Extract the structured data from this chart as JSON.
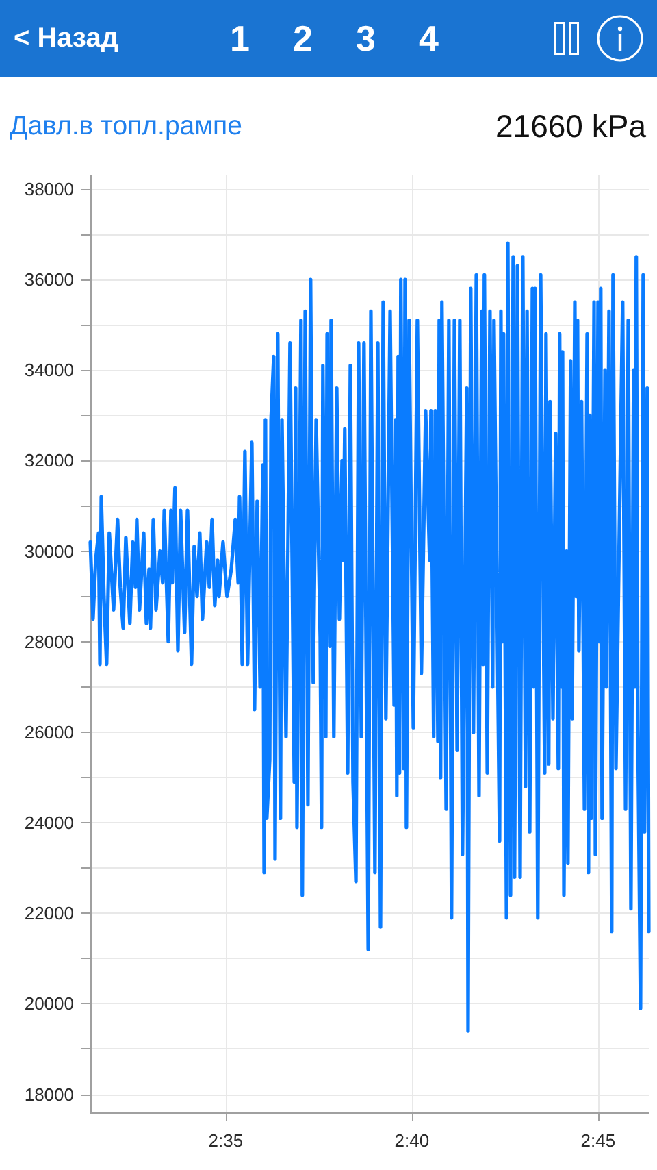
{
  "chart_data": {
    "type": "line",
    "title": "Давл.в топл.рампе",
    "annotations": [
      "< Назад",
      "1",
      "2",
      "3",
      "4",
      "21660 kPa"
    ],
    "color": "#0a7cff",
    "marker": "none",
    "line_style": "solid",
    "grid": true,
    "xlim": [
      2.5227,
      2.7727
    ],
    "xticks": [
      {
        "value": 2.58333,
        "label": "2:35"
      },
      {
        "value": 2.66667,
        "label": "2:40"
      },
      {
        "value": 2.75,
        "label": "2:45"
      }
    ],
    "ylim": [
      17600,
      38300
    ],
    "yticks": [
      18000,
      {
        "value": 19000,
        "label": null
      },
      20000,
      {
        "value": 21000,
        "label": null
      },
      22000,
      {
        "value": 23000,
        "label": null
      },
      24000,
      {
        "value": 25000,
        "label": null
      },
      26000,
      {
        "value": 27000,
        "label": null
      },
      28000,
      {
        "value": 29000,
        "label": null
      },
      30000,
      {
        "value": 31000,
        "label": null
      },
      32000,
      {
        "value": 33000,
        "label": null
      },
      34000,
      {
        "value": 35000,
        "label": null
      },
      36000,
      {
        "value": 37000,
        "label": null
      },
      38000
    ],
    "x": [
      2.5227,
      2.5239,
      2.5251,
      2.5264,
      2.527,
      2.5276,
      2.5288,
      2.53,
      2.5312,
      2.5331,
      2.5349,
      2.5361,
      2.5374,
      2.5386,
      2.5404,
      2.5417,
      2.5429,
      2.5435,
      2.5447,
      2.5466,
      2.5478,
      2.549,
      2.5496,
      2.5509,
      2.5521,
      2.5539,
      2.5551,
      2.5558,
      2.5576,
      2.5588,
      2.5594,
      2.5606,
      2.5619,
      2.5631,
      2.5649,
      2.5662,
      2.568,
      2.5692,
      2.5705,
      2.5717,
      2.5729,
      2.5748,
      2.576,
      2.5772,
      2.5784,
      2.5797,
      2.5803,
      2.5821,
      2.5839,
      2.5858,
      2.5876,
      2.5889,
      2.5895,
      2.5907,
      2.5919,
      2.5931,
      2.595,
      2.5962,
      2.5974,
      2.5987,
      2.5999,
      2.6005,
      2.6011,
      2.6017,
      2.603,
      2.6036,
      2.6048,
      2.6054,
      2.6066,
      2.6078,
      2.6085,
      2.6103,
      2.6121,
      2.614,
      2.6146,
      2.6152,
      2.617,
      2.6176,
      2.6189,
      2.6201,
      2.6213,
      2.6225,
      2.6238,
      2.6256,
      2.6262,
      2.6268,
      2.6281,
      2.6287,
      2.6299,
      2.6305,
      2.6317,
      2.633,
      2.6342,
      2.6354,
      2.636,
      2.6366,
      2.6379,
      2.6391,
      2.6403,
      2.6416,
      2.6428,
      2.644,
      2.6452,
      2.6471,
      2.6483,
      2.6501,
      2.6514,
      2.6526,
      2.6538,
      2.655,
      2.6569,
      2.6587,
      2.6593,
      2.6599,
      2.6605,
      2.6611,
      2.6617,
      2.663,
      2.6636,
      2.6642,
      2.6654,
      2.6673,
      2.6691,
      2.6709,
      2.6728,
      2.6746,
      2.6752,
      2.6764,
      2.6771,
      2.6783,
      2.6789,
      2.6795,
      2.6801,
      2.682,
      2.6832,
      2.6844,
      2.6857,
      2.6869,
      2.6881,
      2.6893,
      2.6912,
      2.6918,
      2.693,
      2.6942,
      2.6955,
      2.6967,
      2.6979,
      2.6985,
      2.6991,
      2.7004,
      2.7016,
      2.7028,
      2.7034,
      2.7059,
      2.7065,
      2.7071,
      2.7077,
      2.709,
      2.7096,
      2.7108,
      2.712,
      2.7126,
      2.7139,
      2.7151,
      2.7163,
      2.7175,
      2.7182,
      2.7194,
      2.7206,
      2.7212,
      2.7218,
      2.723,
      2.7243,
      2.7261,
      2.7267,
      2.7279,
      2.7285,
      2.7298,
      2.731,
      2.7322,
      2.7328,
      2.7335,
      2.7341,
      2.7347,
      2.7359,
      2.7365,
      2.7377,
      2.7384,
      2.7396,
      2.7402,
      2.7408,
      2.7414,
      2.7426,
      2.7439,
      2.7451,
      2.7457,
      2.7463,
      2.7469,
      2.7482,
      2.7488,
      2.75,
      2.7506,
      2.7512,
      2.7518,
      2.7531,
      2.7537,
      2.7549,
      2.7561,
      2.7567,
      2.758,
      2.7592,
      2.761,
      2.7623,
      2.7635,
      2.7647,
      2.7659,
      2.7665,
      2.7671,
      2.7678,
      2.769,
      2.7702,
      2.7708,
      2.772,
      2.7727
    ],
    "values": [
      30200,
      28500,
      29800,
      30400,
      27500,
      31200,
      29000,
      27500,
      30400,
      28700,
      30700,
      29200,
      28300,
      30300,
      28400,
      30200,
      29200,
      30700,
      28700,
      30400,
      28400,
      29600,
      28300,
      30700,
      28700,
      30000,
      29300,
      30900,
      28000,
      30900,
      29300,
      31400,
      27800,
      30900,
      28200,
      30900,
      27500,
      30100,
      29000,
      30400,
      28500,
      30200,
      29200,
      30700,
      28800,
      29800,
      29000,
      30200,
      29000,
      29600,
      30700,
      29300,
      31200,
      27500,
      32200,
      27500,
      32400,
      26500,
      31100,
      27000,
      31900,
      22900,
      32900,
      24100,
      25400,
      32900,
      34300,
      23200,
      34800,
      24100,
      32900,
      25900,
      34600,
      24900,
      33600,
      23900,
      35100,
      22400,
      35300,
      24400,
      36000,
      27100,
      32900,
      28100,
      23900,
      34100,
      25900,
      34800,
      27900,
      35100,
      25900,
      33600,
      28500,
      32000,
      29800,
      32700,
      25100,
      34100,
      24900,
      22700,
      34600,
      25900,
      34600,
      21200,
      35300,
      22900,
      34600,
      21700,
      35500,
      26300,
      35300,
      26600,
      32900,
      24600,
      34300,
      25100,
      36000,
      25200,
      36000,
      23900,
      35100,
      26100,
      35100,
      27300,
      33100,
      29800,
      33100,
      25900,
      33100,
      25800,
      35100,
      25000,
      35500,
      24300,
      35100,
      21900,
      35100,
      25600,
      35100,
      23300,
      33600,
      19400,
      35800,
      26000,
      36100,
      24600,
      35300,
      27500,
      36100,
      25100,
      35300,
      27000,
      35100,
      23600,
      35300,
      28000,
      34800,
      21900,
      36800,
      22400,
      36500,
      22800,
      36300,
      22800,
      36500,
      24800,
      35300,
      23800,
      35800,
      27000,
      35800,
      21900,
      36100,
      25100,
      34800,
      25300,
      33300,
      26300,
      32600,
      25200,
      34800,
      27000,
      34400,
      22400,
      30000,
      23100,
      34200,
      26300,
      35500,
      29000,
      35100,
      27800,
      33300,
      24300,
      34800,
      22900,
      33000,
      24100,
      35500,
      23300,
      35500,
      28000,
      35800,
      24100,
      34000,
      27000,
      35300,
      21600,
      36100,
      25200,
      29400,
      35500,
      24300,
      35100,
      22100,
      34000,
      27000,
      36500,
      26100,
      19900,
      36100,
      23800,
      33600,
      21600
    ]
  }
}
